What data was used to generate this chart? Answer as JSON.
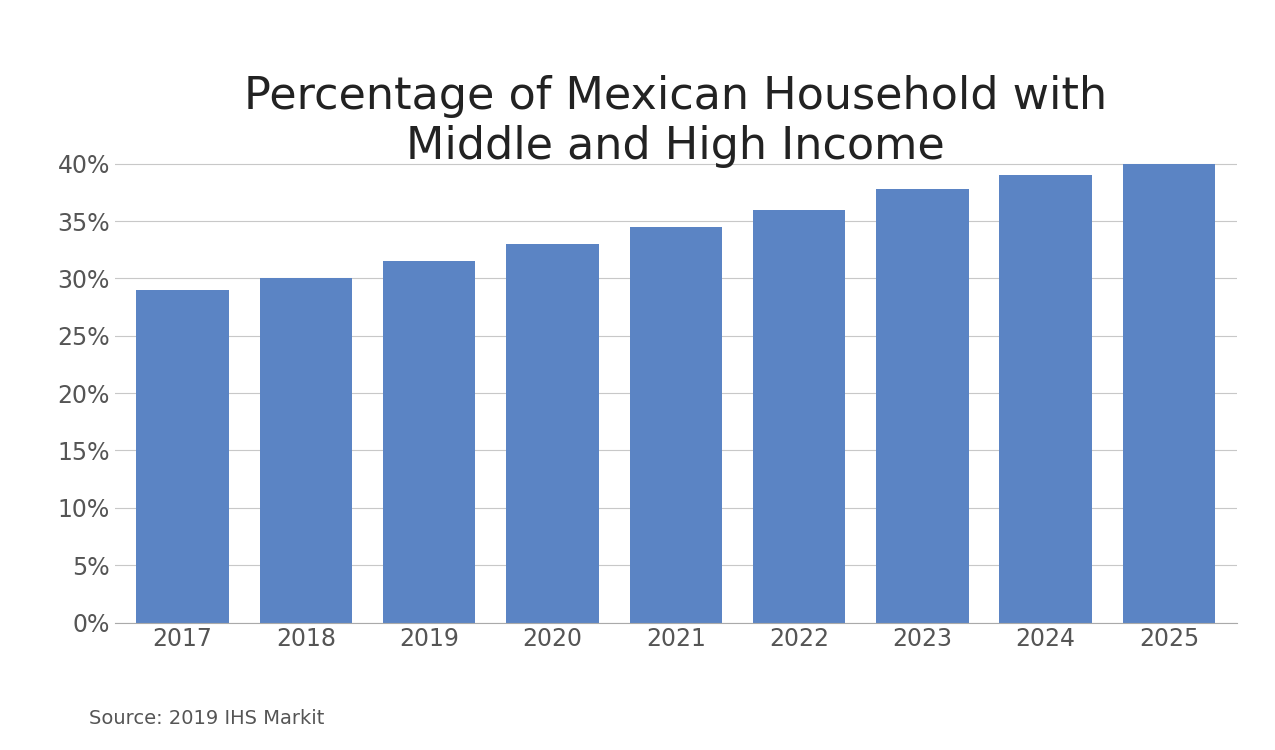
{
  "title": "Percentage of Mexican Household with\nMiddle and High Income",
  "categories": [
    "2017",
    "2018",
    "2019",
    "2020",
    "2021",
    "2022",
    "2023",
    "2024",
    "2025"
  ],
  "values": [
    0.29,
    0.3,
    0.315,
    0.33,
    0.345,
    0.36,
    0.378,
    0.39,
    0.4
  ],
  "bar_color": "#5b84c4",
  "ylim": [
    0,
    0.425
  ],
  "yticks": [
    0.0,
    0.05,
    0.1,
    0.15,
    0.2,
    0.25,
    0.3,
    0.35,
    0.4
  ],
  "title_fontsize": 32,
  "tick_fontsize": 17,
  "source_text": "Source: 2019 IHS Markit",
  "source_fontsize": 14,
  "background_color": "#ffffff",
  "grid_color": "#c8c8c8"
}
